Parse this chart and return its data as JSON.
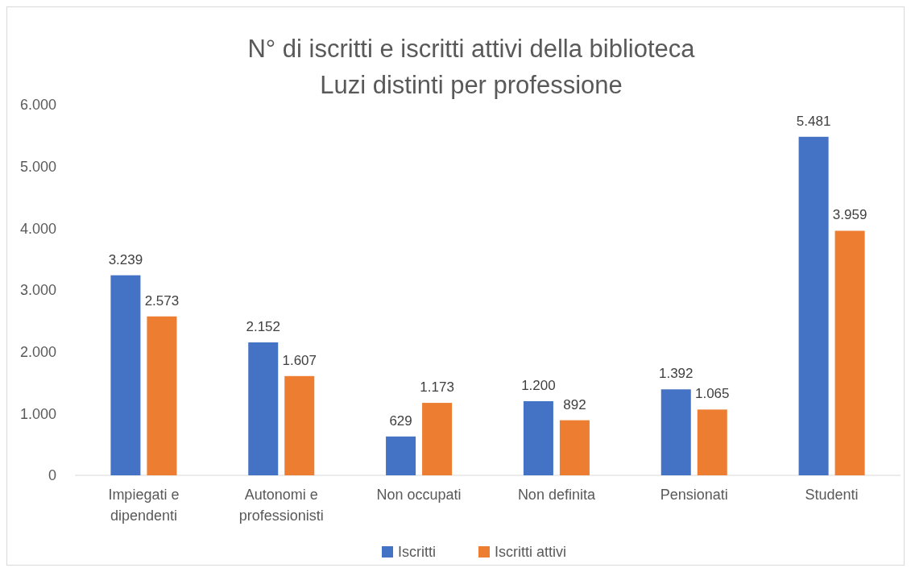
{
  "chart_data": {
    "type": "bar",
    "title": "N° di iscritti e iscritti attivi della biblioteca",
    "subtitle": "Luzi distinti per professione",
    "categories": [
      "Impiegati e dipendenti",
      "Autonomi e professionisti",
      "Non occupati",
      "Non definita",
      "Pensionati",
      "Studenti"
    ],
    "series": [
      {
        "name": "Iscritti",
        "color": "#4472c4",
        "values": [
          3239,
          2152,
          629,
          1200,
          1392,
          5481
        ],
        "value_labels": [
          "3.239",
          "2.152",
          "629",
          "1.200",
          "1.392",
          "5.481"
        ]
      },
      {
        "name": "Iscritti attivi",
        "color": "#ed7d31",
        "values": [
          2573,
          1607,
          1173,
          892,
          1065,
          3959
        ],
        "value_labels": [
          "2.573",
          "1.607",
          "1.173",
          "892",
          "1.065",
          "3.959"
        ]
      }
    ],
    "ylim": [
      0,
      6000
    ],
    "yticks": [
      {
        "value": 0,
        "label": "0"
      },
      {
        "value": 1000,
        "label": "1.000"
      },
      {
        "value": 2000,
        "label": "2.000"
      },
      {
        "value": 3000,
        "label": "3.000"
      },
      {
        "value": 4000,
        "label": "4.000"
      },
      {
        "value": 5000,
        "label": "5.000"
      },
      {
        "value": 6000,
        "label": "6.000"
      }
    ],
    "grid": false,
    "legend": "bottom"
  }
}
